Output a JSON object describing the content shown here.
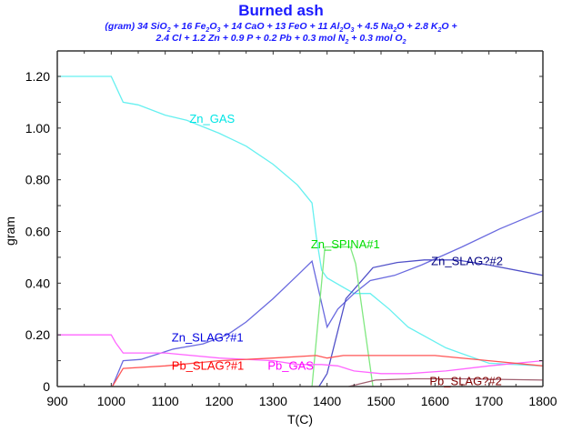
{
  "chart_data": {
    "type": "line",
    "title": "Burned ash",
    "subtitle_line1": "(gram) 34 SiO2 + 16 Fe2O3 + 14 CaO + 13 FeO + 11 Al2O3 + 4.5 Na2O + 2.8 K2O +",
    "subtitle_line2": "2.4 Cl + 1.2 Zn + 0.9 P + 0.2 Pb + 0.3 mol N2 + 0.3 mol O2",
    "xlabel": "T(C)",
    "ylabel": "gram",
    "xlim": [
      900,
      1800
    ],
    "ylim": [
      0,
      1.3
    ],
    "xticks": [
      900,
      1000,
      1100,
      1200,
      1300,
      1400,
      1500,
      1600,
      1700,
      1800
    ],
    "xtick_labels": [
      "900",
      "1000",
      "1100",
      "1200",
      "1300",
      "1400",
      "1500",
      "1600",
      "1700",
      "1800"
    ],
    "yticks": [
      0,
      0.2,
      0.4,
      0.6,
      0.8,
      1.0,
      1.2
    ],
    "ytick_labels": [
      "0",
      "0.20",
      "0.40",
      "0.60",
      "0.80",
      "1.00",
      "1.20"
    ],
    "grid": false,
    "legend": "inline labels",
    "series": [
      {
        "name": "Zn_GAS",
        "color": "#66f0f0",
        "label_color": "#00e5e5",
        "label_pos": [
          1145,
          1.02
        ],
        "x": [
          900,
          1000,
          1022,
          1050,
          1100,
          1140,
          1200,
          1250,
          1300,
          1345,
          1372,
          1380,
          1390,
          1400,
          1425,
          1450,
          1480,
          1515,
          1550,
          1620,
          1700,
          1800
        ],
        "y": [
          1.2,
          1.2,
          1.1,
          1.09,
          1.05,
          1.03,
          0.98,
          0.93,
          0.86,
          0.78,
          0.71,
          0.58,
          0.45,
          0.42,
          0.39,
          0.36,
          0.36,
          0.3,
          0.23,
          0.15,
          0.09,
          0.08
        ]
      },
      {
        "name": "Zn_SLAG?#1",
        "color": "#6a6adf",
        "label_color": "#0000e0",
        "label_pos": [
          1112,
          0.175
        ],
        "x": [
          900,
          1002,
          1022,
          1055,
          1115,
          1170,
          1215,
          1250,
          1300,
          1345,
          1372,
          1400,
          1420,
          1450,
          1480,
          1525,
          1575,
          1650,
          1720,
          1800
        ],
        "y": [
          null,
          0.0,
          0.1,
          0.105,
          0.145,
          0.165,
          0.2,
          0.25,
          0.34,
          0.43,
          0.485,
          0.23,
          0.3,
          0.36,
          0.41,
          0.43,
          0.47,
          0.54,
          0.61,
          0.68
        ]
      },
      {
        "name": "Zn_SLAG?#2",
        "color": "#5050c8",
        "label_color": "#000080",
        "label_pos": [
          1593,
          0.47
        ],
        "x": [
          1385,
          1400,
          1435,
          1485,
          1530,
          1580,
          1640,
          1700,
          1800
        ],
        "y": [
          0.0,
          0.05,
          0.34,
          0.46,
          0.48,
          0.49,
          0.49,
          0.47,
          0.43
        ]
      },
      {
        "name": "Zn_SPINA#1",
        "color": "#80e880",
        "label_color": "#00dd00",
        "label_pos": [
          1370,
          0.535
        ],
        "x": [
          1372,
          1396,
          1443,
          1453,
          1485
        ],
        "y": [
          0.0,
          0.54,
          0.54,
          0.475,
          0.0
        ]
      },
      {
        "name": "Pb_GAS",
        "color": "#ff66ff",
        "label_color": "#ff00ff",
        "label_pos": [
          1290,
          0.065
        ],
        "x": [
          900,
          1000,
          1008,
          1022,
          1100,
          1200,
          1300,
          1345,
          1390,
          1420,
          1450,
          1500,
          1550,
          1620,
          1700,
          1800
        ],
        "y": [
          0.2,
          0.2,
          0.17,
          0.13,
          0.13,
          0.11,
          0.1,
          0.085,
          0.085,
          0.08,
          0.06,
          0.05,
          0.05,
          0.06,
          0.08,
          0.1
        ]
      },
      {
        "name": "Pb_SLAG?#1",
        "color": "#ff5555",
        "label_color": "#ff0000",
        "label_pos": [
          1112,
          0.065
        ],
        "x": [
          1002,
          1022,
          1100,
          1200,
          1300,
          1380,
          1400,
          1430,
          1470,
          1520,
          1600,
          1700,
          1800
        ],
        "y": [
          0.0,
          0.07,
          0.08,
          0.1,
          0.11,
          0.12,
          0.11,
          0.12,
          0.12,
          0.12,
          0.12,
          0.1,
          0.08
        ]
      },
      {
        "name": "Pb_SLAG?#2",
        "color": "#a06070",
        "label_color": "#800000",
        "label_pos": [
          1590,
          0.005
        ],
        "x": [
          1440,
          1490,
          1560,
          1650,
          1800
        ],
        "y": [
          0.0,
          0.025,
          0.03,
          0.03,
          0.025
        ]
      }
    ]
  }
}
